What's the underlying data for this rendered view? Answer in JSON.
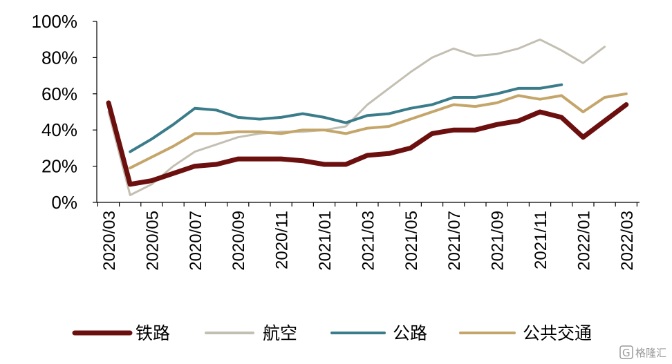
{
  "chart_data": {
    "type": "line",
    "title": "",
    "xlabel": "",
    "ylabel": "",
    "ylim": [
      0,
      100
    ],
    "yticks": [
      "0%",
      "20%",
      "40%",
      "60%",
      "80%",
      "100%"
    ],
    "x": [
      "2020/03",
      "2020/04",
      "2020/05",
      "2020/06",
      "2020/07",
      "2020/08",
      "2020/09",
      "2020/10",
      "2020/11",
      "2020/12",
      "2021/01",
      "2021/02",
      "2021/03",
      "2021/04",
      "2021/05",
      "2021/06",
      "2021/07",
      "2021/08",
      "2021/09",
      "2021/10",
      "2021/11",
      "2021/12",
      "2022/01",
      "2022/02",
      "2022/03"
    ],
    "xtick_labels": [
      "2020/03",
      "2020/05",
      "2020/07",
      "2020/09",
      "2020/11",
      "2021/01",
      "2021/03",
      "2021/05",
      "2021/07",
      "2021/09",
      "2021/11",
      "2022/01",
      "2022/03"
    ],
    "grid": false,
    "legend_position": "bottom",
    "series": [
      {
        "name": "铁路",
        "color": "#6b0f0f",
        "width": 7,
        "values": [
          55,
          10,
          12,
          16,
          20,
          21,
          24,
          24,
          24,
          23,
          21,
          21,
          26,
          27,
          30,
          38,
          40,
          40,
          43,
          45,
          50,
          47,
          36,
          45,
          54
        ]
      },
      {
        "name": "航空",
        "color": "#c3bfb2",
        "width": 3,
        "values": [
          50,
          4,
          10,
          20,
          28,
          32,
          36,
          38,
          39,
          39,
          40,
          42,
          54,
          63,
          72,
          80,
          85,
          81,
          82,
          85,
          90,
          84,
          77,
          86,
          null
        ]
      },
      {
        "name": "公路",
        "color": "#3a7c89",
        "width": 4,
        "values": [
          null,
          28,
          35,
          43,
          52,
          51,
          47,
          46,
          47,
          49,
          47,
          44,
          48,
          49,
          52,
          54,
          58,
          58,
          60,
          63,
          63,
          65,
          null,
          null,
          null
        ]
      },
      {
        "name": "公共交通",
        "color": "#c4a56a",
        "width": 4,
        "values": [
          null,
          19,
          25,
          31,
          38,
          38,
          39,
          39,
          38,
          40,
          40,
          38,
          41,
          42,
          46,
          50,
          54,
          53,
          55,
          59,
          57,
          59,
          50,
          58,
          60
        ]
      }
    ]
  },
  "watermark": {
    "text": "格隆汇",
    "logo_letter": "G"
  }
}
